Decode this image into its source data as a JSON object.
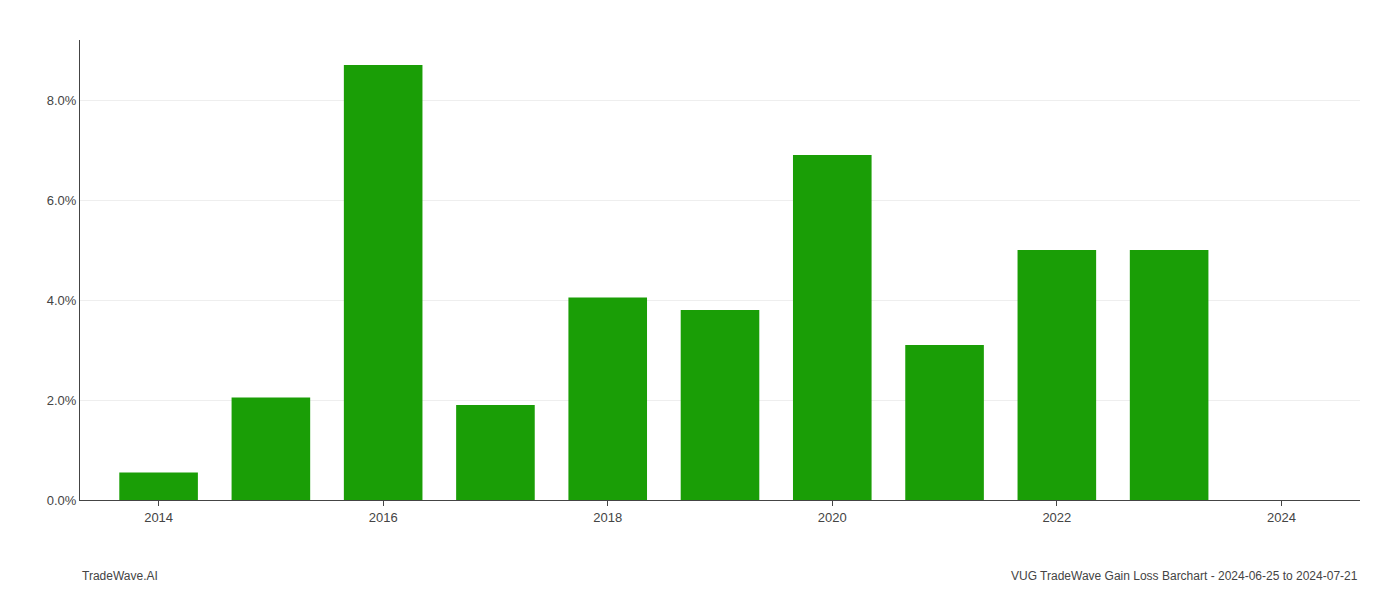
{
  "chart_data": {
    "type": "bar",
    "x": [
      2014,
      2015,
      2016,
      2017,
      2018,
      2019,
      2020,
      2021,
      2022,
      2023
    ],
    "values": [
      0.0055,
      0.0205,
      0.087,
      0.019,
      0.0405,
      0.038,
      0.069,
      0.031,
      0.05,
      0.05
    ],
    "color": "#1a9e06",
    "xlim": [
      2013.3,
      2024.7
    ],
    "xticks": [
      2014,
      2016,
      2018,
      2020,
      2022,
      2024
    ],
    "ylim": [
      0.0,
      0.092
    ],
    "yticks": [
      {
        "value": 0.0,
        "label": "0.0%"
      },
      {
        "value": 0.02,
        "label": "2.0%"
      },
      {
        "value": 0.04,
        "label": "4.0%"
      },
      {
        "value": 0.06,
        "label": "6.0%"
      },
      {
        "value": 0.08,
        "label": "8.0%"
      }
    ],
    "grid": "y",
    "annotations": [
      "TradeWave.AI",
      "VUG TradeWave Gain Loss Barchart - 2024-06-25 to 2024-07-21"
    ]
  }
}
